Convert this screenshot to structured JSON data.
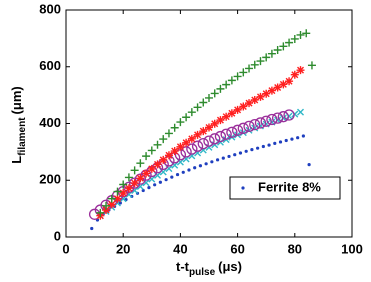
{
  "chart_data": {
    "type": "scatter",
    "xlabel": {
      "main": "t-t",
      "sub": "pulse",
      "unit": "(μs)"
    },
    "ylabel": {
      "main": "L",
      "sub": "filament",
      "unit": "(μm)"
    },
    "xlim": [
      0,
      100
    ],
    "xticks": [
      0,
      20,
      40,
      60,
      80,
      100
    ],
    "ylim": [
      0,
      800
    ],
    "yticks": [
      0,
      200,
      400,
      600,
      800
    ],
    "grid": false,
    "legend": "lower right",
    "series": [
      {
        "name": "Ferrite 8%",
        "color": "#1f3fbf",
        "marker": "dot",
        "x": [
          9,
          11,
          13,
          15,
          17,
          19,
          21,
          23,
          25,
          27,
          29,
          31,
          33,
          35,
          37,
          39,
          41,
          43,
          45,
          47,
          49,
          51,
          53,
          55,
          57,
          59,
          61,
          63,
          65,
          67,
          69,
          71,
          73,
          75,
          77,
          79,
          81,
          83,
          85
        ],
        "values": [
          30,
          60,
          80,
          95,
          108,
          120,
          132,
          143,
          154,
          164,
          174,
          184,
          193,
          202,
          211,
          220,
          228,
          236,
          244,
          251,
          258,
          265,
          272,
          278,
          284,
          290,
          296,
          302,
          308,
          313,
          319,
          324,
          330,
          335,
          340,
          345,
          350,
          356,
          255
        ]
      },
      {
        "color": "#30b8c8",
        "marker": "x",
        "x": [
          12,
          14,
          16,
          18,
          20,
          22,
          24,
          26,
          28,
          30,
          32,
          34,
          36,
          38,
          40,
          42,
          44,
          46,
          48,
          50,
          52,
          54,
          56,
          58,
          60,
          62,
          64,
          66,
          68,
          70,
          72,
          74,
          76,
          78,
          80,
          82
        ],
        "values": [
          75,
          90,
          105,
          120,
          135,
          150,
          164,
          178,
          191,
          204,
          217,
          229,
          241,
          253,
          264,
          275,
          286,
          296,
          306,
          316,
          325,
          334,
          343,
          352,
          360,
          368,
          376,
          384,
          391,
          398,
          405,
          412,
          419,
          426,
          433,
          440
        ]
      },
      {
        "color": "#9b2f9b",
        "marker": "circle",
        "x": [
          10,
          12,
          14,
          16,
          18,
          20,
          22,
          24,
          26,
          28,
          30,
          32,
          34,
          36,
          38,
          40,
          42,
          44,
          46,
          48,
          50,
          52,
          54,
          56,
          58,
          60,
          62,
          64,
          66,
          68,
          70,
          72,
          74,
          76,
          78
        ],
        "values": [
          80,
          95,
          112,
          128,
          145,
          160,
          175,
          190,
          204,
          218,
          231,
          244,
          256,
          268,
          279,
          290,
          300,
          310,
          320,
          329,
          338,
          346,
          354,
          362,
          369,
          376,
          383,
          390,
          396,
          402,
          408,
          414,
          419,
          424,
          430
        ]
      },
      {
        "color": "#ff2020",
        "marker": "star",
        "x": [
          12,
          14,
          16,
          18,
          20,
          22,
          24,
          26,
          28,
          30,
          32,
          34,
          36,
          38,
          40,
          42,
          44,
          46,
          48,
          50,
          52,
          54,
          56,
          58,
          60,
          62,
          64,
          66,
          68,
          70,
          72,
          74,
          76,
          78,
          80,
          82
        ],
        "values": [
          75,
          95,
          115,
          135,
          155,
          172,
          190,
          207,
          224,
          240,
          256,
          272,
          288,
          303,
          318,
          332,
          346,
          360,
          373,
          386,
          399,
          412,
          424,
          436,
          448,
          460,
          472,
          483,
          494,
          505,
          516,
          527,
          538,
          549,
          572,
          588
        ]
      },
      {
        "color": "#2e8b2e",
        "marker": "plus",
        "x": [
          12,
          14,
          16,
          18,
          20,
          22,
          24,
          26,
          28,
          30,
          32,
          34,
          36,
          38,
          40,
          42,
          44,
          46,
          48,
          50,
          52,
          54,
          56,
          58,
          60,
          62,
          64,
          66,
          68,
          70,
          72,
          74,
          76,
          78,
          80,
          82,
          84,
          86
        ],
        "values": [
          85,
          110,
          135,
          160,
          185,
          210,
          235,
          260,
          285,
          305,
          325,
          345,
          365,
          385,
          405,
          422,
          440,
          457,
          474,
          490,
          506,
          522,
          537,
          552,
          566,
          580,
          594,
          607,
          620,
          633,
          646,
          659,
          672,
          685,
          698,
          712,
          718,
          605
        ]
      }
    ]
  }
}
